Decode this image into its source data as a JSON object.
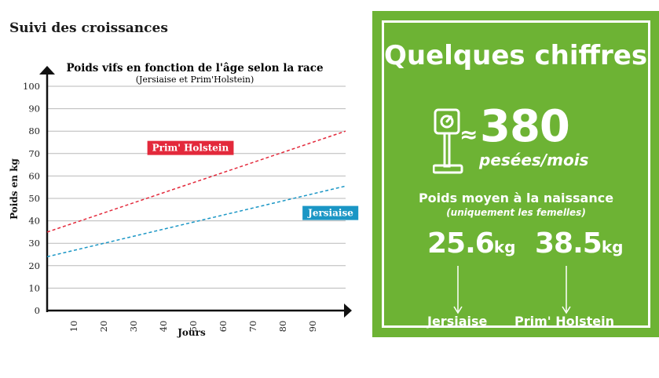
{
  "section_title": "Suivi des croissances",
  "chart_data": {
    "type": "line",
    "title": "Poids vifs en fonction de l'âge selon la race",
    "subtitle": "(Jersiaise et Prim'Holstein)",
    "xlabel": "Jours",
    "ylabel": "Poids en kg",
    "xlim": [
      0,
      100
    ],
    "ylim": [
      0,
      100
    ],
    "x_ticks": [
      10,
      20,
      30,
      40,
      50,
      60,
      70,
      80,
      90
    ],
    "y_ticks": [
      0,
      10,
      20,
      30,
      40,
      50,
      60,
      70,
      80,
      90,
      100
    ],
    "grid": true,
    "series": [
      {
        "name": "Prim' Holstein",
        "color": "#e3293b",
        "x": [
          0,
          100
        ],
        "y": [
          35,
          80
        ]
      },
      {
        "name": "Jersiaise",
        "color": "#1a96c5",
        "x": [
          0,
          100
        ],
        "y": [
          24,
          55.5
        ]
      }
    ]
  },
  "panel": {
    "bg_color": "#6db334",
    "title": "Quelques chiffres :",
    "approx": "≈",
    "weighings_count": "380",
    "weighings_unit": "pesées/mois",
    "birth_weight_heading": "Poids moyen à la naissance",
    "birth_weight_note": "(uniquement les femelles)",
    "stats": [
      {
        "value": "25.6",
        "unit": "kg",
        "breed": "Jersiaise"
      },
      {
        "value": "38.5",
        "unit": "kg",
        "breed": "Prim' Holstein"
      }
    ]
  }
}
